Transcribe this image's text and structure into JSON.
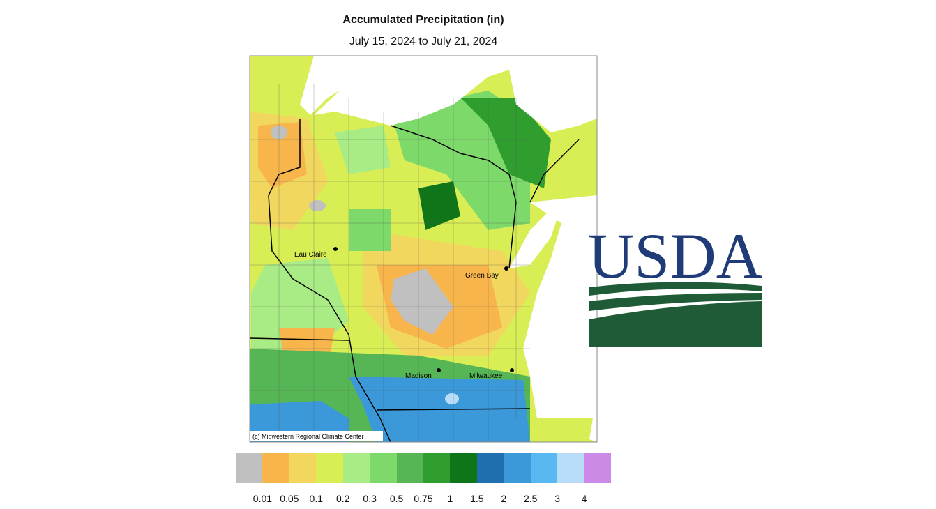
{
  "title": "Accumulated Precipitation (in)",
  "subtitle": "July 15, 2024 to July 21, 2024",
  "map": {
    "cities": [
      {
        "name": "Eau Claire"
      },
      {
        "name": "Green Bay"
      },
      {
        "name": "Madison"
      },
      {
        "name": "Milwaukee"
      }
    ],
    "credit": "(c) Midwestern Regional Climate Center"
  },
  "legend": {
    "colors": [
      "#c0c0c0",
      "#f7b54c",
      "#f2d75e",
      "#d9ee55",
      "#a9eb84",
      "#7cd96a",
      "#56b656",
      "#2f9e2f",
      "#0f7518",
      "#1f6fae",
      "#3b99da",
      "#58b9f2",
      "#b9ddf8",
      "#cb8ae6"
    ],
    "labels": [
      "0.01",
      "0.05",
      "0.1",
      "0.2",
      "0.3",
      "0.5",
      "0.75",
      "1",
      "1.5",
      "2",
      "2.5",
      "3",
      "4"
    ]
  },
  "logo": {
    "text": "USDA"
  }
}
